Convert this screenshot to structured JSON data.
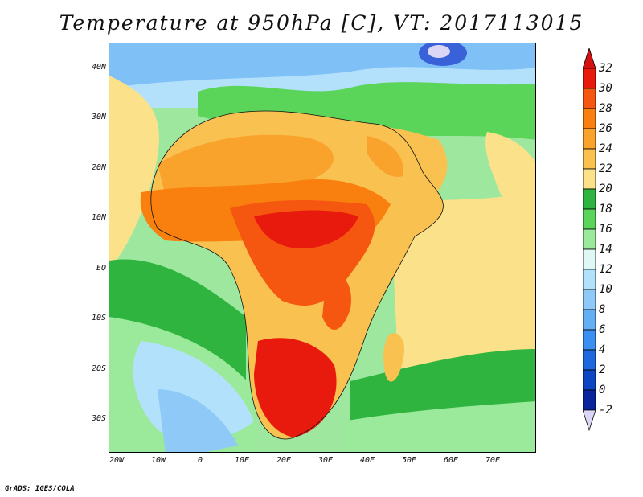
{
  "title": "Temperature at 950hPa [C], VT: 2017113015",
  "credit": "GrADS: IGES/COLA",
  "map": {
    "lon_range": [
      -22,
      80
    ],
    "lat_range": [
      -37,
      45
    ],
    "lat_labels": [
      "40N",
      "30N",
      "20N",
      "10N",
      "EQ",
      "10S",
      "20S",
      "30S"
    ],
    "lon_labels": [
      "20W",
      "10W",
      "0",
      "10E",
      "20E",
      "30E",
      "40E",
      "50E",
      "60E",
      "70E"
    ]
  },
  "colorbar": {
    "labels": [
      "32",
      "30",
      "28",
      "26",
      "24",
      "22",
      "20",
      "18",
      "16",
      "14",
      "12",
      "10",
      "8",
      "6",
      "4",
      "2",
      "0",
      "-2"
    ],
    "colors": [
      "#e81a0e",
      "#f55710",
      "#f9800f",
      "#f9a32c",
      "#f9c150",
      "#fbe28a",
      "#2fb53f",
      "#5bd45a",
      "#9be99b",
      "#dff7f5",
      "#b2e2fb",
      "#8ec9f8",
      "#64aef4",
      "#3b8ff0",
      "#1e67de",
      "#0d46c2",
      "#0a249c"
    ],
    "top_color": "#d41010",
    "bottom_color": "#dcd6f6"
  }
}
